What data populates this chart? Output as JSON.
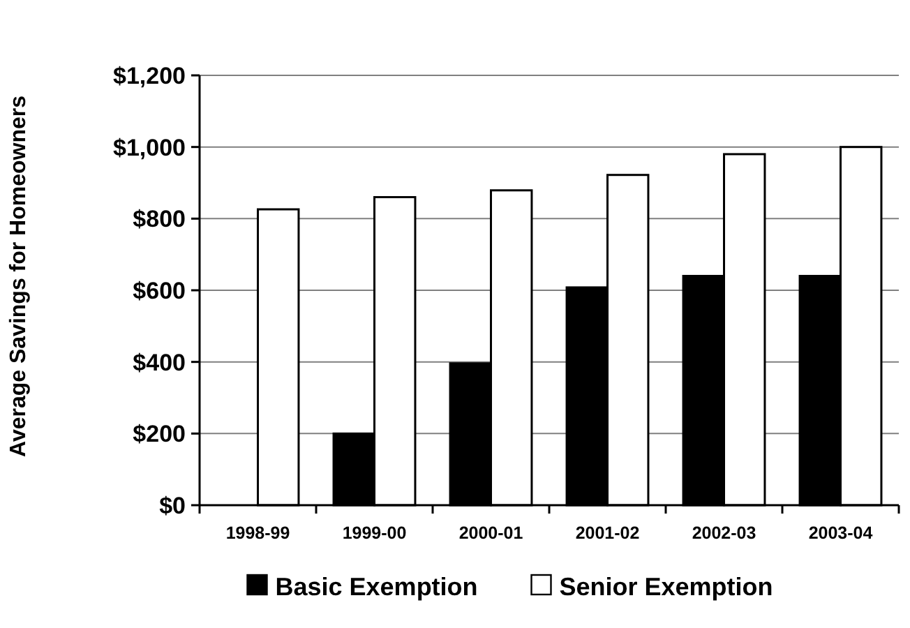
{
  "chart_data": {
    "type": "bar",
    "ylabel": "Average Savings for Homeowners",
    "categories": [
      "1998-99",
      "1999-00",
      "2000-01",
      "2001-02",
      "2002-03",
      "2003-04"
    ],
    "series": [
      {
        "name": "Basic Exemption",
        "color": "#000000",
        "values": [
          null,
          200,
          396,
          608,
          640,
          640
        ]
      },
      {
        "name": "Senior Exemption",
        "color": "#ffffff",
        "values": [
          826,
          860,
          879,
          922,
          980,
          1000
        ]
      }
    ],
    "ylim": [
      0,
      1200
    ],
    "yticks": [
      {
        "value": 0,
        "label": "$0"
      },
      {
        "value": 200,
        "label": "$200"
      },
      {
        "value": 400,
        "label": "$400"
      },
      {
        "value": 600,
        "label": "$600"
      },
      {
        "value": 800,
        "label": "$800"
      },
      {
        "value": 1000,
        "label": "$1,000"
      },
      {
        "value": 1200,
        "label": "$1,200"
      }
    ],
    "grid": "y",
    "legend": "bottom"
  }
}
